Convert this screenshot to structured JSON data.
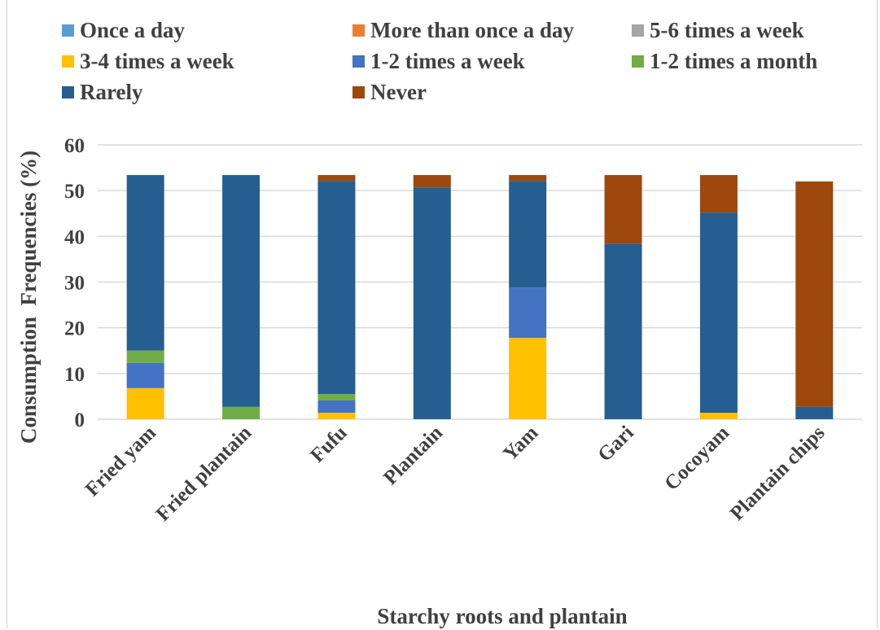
{
  "chart_data": {
    "type": "bar",
    "stacked": true,
    "title": "",
    "xlabel": "Starchy roots and plantain",
    "ylabel": "Consumption  Frequencies (%)",
    "ylim": [
      0,
      60
    ],
    "yticks": [
      "0",
      "10",
      "20",
      "30",
      "40",
      "50",
      "60"
    ],
    "grid": true,
    "legend_position": "top",
    "categories": [
      "Fried yam",
      "Fried plantain",
      "Fufu",
      "Plantain",
      "Yam",
      "Gari",
      "Cocoyam",
      "Plantain chips"
    ],
    "series": [
      {
        "name": "Once a day",
        "color": "#5B9BD5",
        "values": [
          0,
          0,
          0,
          0,
          0,
          0,
          0,
          0
        ]
      },
      {
        "name": "More than once a day",
        "color": "#ED7D31",
        "values": [
          0,
          0,
          0,
          0,
          0,
          0,
          0,
          0
        ]
      },
      {
        "name": "5-6 times a week",
        "color": "#A5A5A5",
        "values": [
          0,
          0,
          0,
          0,
          0,
          0,
          0,
          0
        ]
      },
      {
        "name": "3-4 times a week",
        "color": "#FFC000",
        "values": [
          6.8,
          0,
          1.4,
          0,
          17.8,
          0,
          1.4,
          0
        ]
      },
      {
        "name": "1-2 times a week",
        "color": "#4472C4",
        "values": [
          5.5,
          0,
          2.7,
          0,
          11.0,
          0,
          0,
          0
        ]
      },
      {
        "name": "1-2 times a month",
        "color": "#70AD47",
        "values": [
          2.7,
          2.7,
          1.4,
          0,
          0,
          0,
          0,
          0
        ]
      },
      {
        "name": "Rarely",
        "color": "#255E91",
        "values": [
          38.4,
          50.7,
          46.6,
          50.7,
          23.3,
          38.4,
          43.8,
          2.7
        ]
      },
      {
        "name": "Never",
        "color": "#9E480E",
        "values": [
          0,
          0,
          1.3,
          2.7,
          1.3,
          15.0,
          8.2,
          49.3
        ]
      }
    ]
  }
}
